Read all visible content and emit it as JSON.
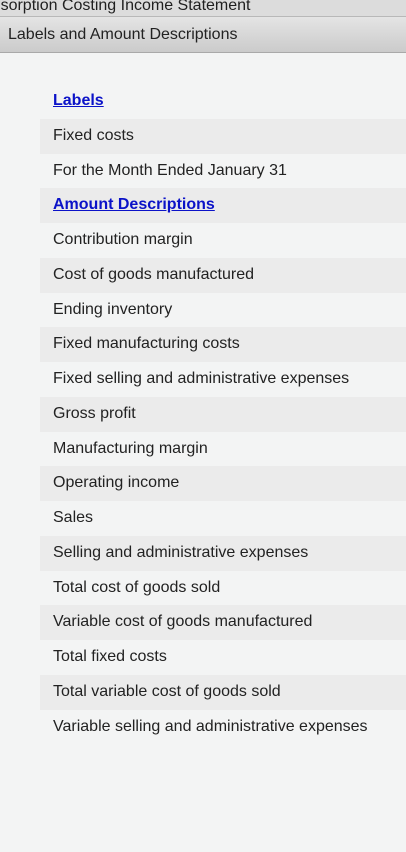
{
  "window": {
    "title": "Absorption Costing Income Statement"
  },
  "panel": {
    "header": "Labels and Amount Descriptions"
  },
  "sections": {
    "labels_heading": "Labels",
    "labels": [
      "Fixed costs",
      "For the Month Ended January 31"
    ],
    "amounts_heading": "Amount Descriptions",
    "amounts": [
      "Contribution margin",
      "Cost of goods manufactured",
      "Ending inventory",
      "Fixed manufacturing costs",
      "Fixed selling and administrative expenses",
      "Gross profit",
      "Manufacturing margin",
      "Operating income",
      "Sales",
      "Selling and administrative expenses",
      "Total cost of goods sold",
      "Variable cost of goods manufactured",
      "Total fixed costs",
      "Total variable cost of goods sold",
      "Variable selling and administrative expenses"
    ]
  },
  "colors": {
    "link": "#0b12c8",
    "row_shade": "#ebebeb",
    "background": "#f3f4f4"
  }
}
